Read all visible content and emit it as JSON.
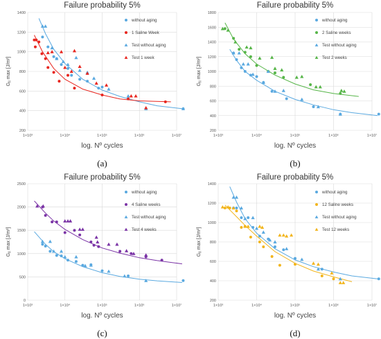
{
  "colors": {
    "blue": "#5aa9e0",
    "red": "#e8261f",
    "green": "#56b548",
    "purple": "#7b34a6",
    "yellow": "#f2b51c",
    "grid": "#d9d9d9"
  },
  "xlabel": "log. Nº cycles",
  "chart_data": [
    {
      "type": "scatter",
      "panel_label": "(a)",
      "title": "Failure probability 5%",
      "xlabel": "log. Nº cycles",
      "ylabel": "G_II max [J/m²]",
      "xscale": "log",
      "xlim": [
        1000,
        10000000
      ],
      "xticks": [
        "1×10³",
        "1×10⁴",
        "1×10⁵",
        "1×10⁶",
        "1×10⁷"
      ],
      "ylim": [
        200,
        1400
      ],
      "yticks": [
        200,
        400,
        600,
        800,
        1000,
        1200,
        1400
      ],
      "grid": true,
      "legend_position": "right",
      "series": [
        {
          "name": "without aging",
          "kind": "point",
          "marker": "circle",
          "color": "#5aa9e0",
          "x": [
            2500,
            3500,
            5000,
            6000,
            8000,
            12000,
            15000,
            25000,
            40000,
            80000,
            100000,
            500000,
            1500000,
            15000000
          ],
          "y": [
            1150,
            1050,
            950,
            930,
            870,
            830,
            760,
            720,
            700,
            630,
            640,
            520,
            420,
            420
          ]
        },
        {
          "name": "1 Saline Week",
          "kind": "point",
          "marker": "circle",
          "color": "#e8261f",
          "x": [
            1500,
            1700,
            2000,
            1600,
            2400,
            3000,
            3500,
            5000,
            7000,
            12000,
            18000,
            100000,
            500000,
            5000000
          ],
          "y": [
            1120,
            1120,
            1100,
            1050,
            980,
            930,
            840,
            790,
            700,
            760,
            630,
            560,
            520,
            490
          ]
        },
        {
          "name": "Test without aging",
          "kind": "point",
          "marker": "triangle",
          "color": "#5aa9e0",
          "x": [
            2500,
            3000,
            4500,
            6000,
            9000,
            12000,
            20000,
            25000,
            40000,
            60000,
            150000,
            500000,
            1500000,
            15000000
          ],
          "y": [
            1260,
            1260,
            1040,
            930,
            900,
            870,
            940,
            810,
            790,
            730,
            620,
            550,
            420,
            420
          ]
        },
        {
          "name": "Test 1 week",
          "kind": "point",
          "marker": "triangle",
          "color": "#e8261f",
          "x": [
            3500,
            4500,
            8000,
            10000,
            15000,
            18000,
            25000,
            40000,
            70000,
            130000,
            600000,
            800000,
            1500000
          ],
          "y": [
            990,
            1000,
            1000,
            840,
            800,
            1010,
            850,
            780,
            680,
            660,
            550,
            550,
            430
          ]
        },
        {
          "name": "",
          "kind": "fit",
          "color": "#5aa9e0",
          "x": [
            2000,
            3000,
            5000,
            10000,
            30000,
            100000,
            300000,
            1000000,
            3000000,
            14000000
          ],
          "y": [
            1340,
            1185,
            1025,
            880,
            720,
            610,
            545,
            490,
            450,
            420
          ]
        },
        {
          "name": "",
          "kind": "fit",
          "color": "#e8261f",
          "x": [
            1500,
            2500,
            5000,
            10000,
            30000,
            100000,
            300000,
            1000000,
            7000000
          ],
          "y": [
            1170,
            1000,
            830,
            720,
            620,
            560,
            520,
            500,
            490
          ]
        }
      ]
    },
    {
      "type": "scatter",
      "panel_label": "(b)",
      "title": "Failure probability 5%",
      "xlabel": "log. Nº cycles",
      "ylabel": "G_II max [J/m²]",
      "xscale": "log",
      "xlim": [
        1000,
        10000000
      ],
      "xticks": [
        "1×10³",
        "1×10⁴",
        "1×10⁵",
        "1×10⁶",
        "1×10⁷"
      ],
      "ylim": [
        200,
        1800
      ],
      "yticks": [
        200,
        400,
        600,
        800,
        1000,
        1200,
        1400,
        1600,
        1800
      ],
      "grid": true,
      "legend_position": "right",
      "series": [
        {
          "name": "without aging",
          "kind": "point",
          "marker": "circle",
          "color": "#5aa9e0",
          "x": [
            2500,
            3000,
            4000,
            5000,
            7000,
            10000,
            15000,
            25000,
            60000,
            300000,
            1500000,
            15000000
          ],
          "y": [
            1250,
            1160,
            1050,
            1000,
            950,
            930,
            850,
            730,
            630,
            520,
            420,
            420
          ]
        },
        {
          "name": "2 Saline weeks",
          "kind": "point",
          "marker": "circle",
          "color": "#56b548",
          "x": [
            1500,
            2500,
            3500,
            5000,
            7000,
            10000,
            20000,
            30000,
            50000,
            250000,
            1500000
          ],
          "y": [
            1580,
            1450,
            1300,
            1260,
            1200,
            1080,
            1000,
            980,
            920,
            820,
            700
          ]
        },
        {
          "name": "Test without aging",
          "kind": "point",
          "marker": "triangle",
          "color": "#5aa9e0",
          "x": [
            2500,
            3500,
            4500,
            6000,
            8000,
            15000,
            20000,
            30000,
            50000,
            150000,
            400000,
            1500000
          ],
          "y": [
            1250,
            1250,
            1100,
            1100,
            960,
            850,
            1000,
            730,
            740,
            620,
            520,
            420
          ]
        },
        {
          "name": "Test 2 weeks",
          "kind": "point",
          "marker": "triangle",
          "color": "#56b548",
          "x": [
            1300,
            1800,
            2800,
            5500,
            7000,
            12000,
            25000,
            30000,
            45000,
            110000,
            150000,
            350000,
            450000,
            1600000,
            1900000
          ],
          "y": [
            1580,
            1560,
            1400,
            1330,
            1320,
            1180,
            1190,
            1040,
            1020,
            920,
            930,
            790,
            790,
            740,
            730
          ]
        },
        {
          "name": "",
          "kind": "fit",
          "color": "#5aa9e0",
          "x": [
            2000,
            3000,
            5000,
            10000,
            30000,
            100000,
            300000,
            1000000,
            3000000,
            14000000
          ],
          "y": [
            1300,
            1150,
            1000,
            880,
            730,
            620,
            545,
            480,
            440,
            400
          ]
        },
        {
          "name": "",
          "kind": "fit",
          "color": "#56b548",
          "x": [
            1500,
            2500,
            5000,
            10000,
            30000,
            100000,
            300000,
            1000000,
            4500000
          ],
          "y": [
            1660,
            1440,
            1240,
            1100,
            950,
            830,
            750,
            700,
            660
          ]
        }
      ]
    },
    {
      "type": "scatter",
      "panel_label": "(c)",
      "title": "Failure probability 5%",
      "xlabel": "log. Nº cycles",
      "ylabel": "G_II max [J/m²]",
      "xscale": "log",
      "xlim": [
        1000,
        10000000
      ],
      "xticks": [
        "1×10³",
        "1×10⁴",
        "1×10⁵",
        "1×10⁶",
        "1×10⁷"
      ],
      "ylim": [
        0,
        2500
      ],
      "yticks": [
        0,
        500,
        1000,
        1500,
        2000,
        2500
      ],
      "grid": true,
      "legend_position": "right",
      "series": [
        {
          "name": "without aging",
          "kind": "point",
          "marker": "circle",
          "color": "#5aa9e0",
          "x": [
            2500,
            3000,
            4000,
            6000,
            8000,
            12000,
            20000,
            30000,
            50000,
            100000,
            500000,
            15000000
          ],
          "y": [
            1200,
            1160,
            1050,
            960,
            950,
            860,
            830,
            750,
            760,
            630,
            520,
            420
          ]
        },
        {
          "name": "4 Saline weeks",
          "kind": "point",
          "marker": "circle",
          "color": "#7b34a6",
          "x": [
            2500,
            3000,
            4500,
            6000,
            10000,
            18000,
            25000,
            50000,
            60000,
            80000,
            300000,
            600000,
            1500000,
            4000000
          ],
          "y": [
            2000,
            1820,
            1680,
            1680,
            1450,
            1500,
            1400,
            1250,
            1180,
            1150,
            1050,
            1000,
            930,
            860
          ]
        },
        {
          "name": "Test without aging",
          "kind": "point",
          "marker": "triangle",
          "color": "#5aa9e0",
          "x": [
            2500,
            4000,
            5000,
            8000,
            10000,
            20000,
            35000,
            50000,
            150000,
            400000,
            1500000
          ],
          "y": [
            1260,
            1260,
            1050,
            1050,
            930,
            930,
            740,
            750,
            620,
            520,
            420
          ]
        },
        {
          "name": "Test 4 weeks",
          "kind": "point",
          "marker": "triangle",
          "color": "#7b34a6",
          "x": [
            1800,
            2600,
            10000,
            12000,
            14000,
            25000,
            30000,
            70000,
            75000,
            150000,
            250000,
            450000,
            700000,
            1500000
          ],
          "y": [
            2020,
            2020,
            1700,
            1700,
            1700,
            1520,
            1520,
            1350,
            1250,
            1200,
            1200,
            1060,
            1000,
            970
          ]
        },
        {
          "name": "",
          "kind": "fit",
          "color": "#5aa9e0",
          "x": [
            1500,
            3000,
            5000,
            10000,
            30000,
            100000,
            300000,
            1000000,
            3000000,
            14000000
          ],
          "y": [
            1470,
            1200,
            1040,
            890,
            720,
            590,
            510,
            450,
            415,
            380
          ]
        },
        {
          "name": "",
          "kind": "fit",
          "color": "#7b34a6",
          "x": [
            1500,
            3000,
            5000,
            10000,
            30000,
            100000,
            300000,
            1000000,
            3000000,
            14000000
          ],
          "y": [
            2130,
            1870,
            1700,
            1520,
            1300,
            1120,
            1010,
            910,
            850,
            780
          ]
        }
      ]
    },
    {
      "type": "scatter",
      "panel_label": "(d)",
      "title": "Failure probability 5%",
      "xlabel": "log. Nº cycles",
      "ylabel": "G_II max [J/m²]",
      "xscale": "log",
      "xlim": [
        1000,
        10000000
      ],
      "xticks": [
        "1×10³",
        "1×10⁴",
        "1×10⁵",
        "1×10⁶",
        "1×10⁷"
      ],
      "ylim": [
        200,
        1400
      ],
      "yticks": [
        200,
        400,
        600,
        800,
        1000,
        1200,
        1400
      ],
      "grid": true,
      "legend_position": "right",
      "series": [
        {
          "name": "without aging",
          "kind": "point",
          "marker": "circle",
          "color": "#5aa9e0",
          "x": [
            2500,
            3000,
            4000,
            6000,
            8000,
            12000,
            20000,
            30000,
            50000,
            100000,
            500000,
            15000000
          ],
          "y": [
            1150,
            1150,
            1050,
            1050,
            950,
            860,
            830,
            750,
            720,
            630,
            520,
            420
          ]
        },
        {
          "name": "12 Saline weeks",
          "kind": "point",
          "marker": "circle",
          "color": "#f2b51c",
          "x": [
            1500,
            2000,
            3000,
            4000,
            5000,
            7000,
            12000,
            15000,
            25000,
            40000,
            100000,
            500000,
            1000000
          ],
          "y": [
            1150,
            1150,
            1120,
            950,
            960,
            850,
            800,
            750,
            650,
            560,
            570,
            450,
            420
          ]
        },
        {
          "name": "Test without aging",
          "kind": "point",
          "marker": "triangle",
          "color": "#5aa9e0",
          "x": [
            2500,
            3000,
            4000,
            5000,
            8000,
            10000,
            15000,
            22000,
            30000,
            60000,
            150000,
            400000,
            1500000
          ],
          "y": [
            1260,
            1260,
            1150,
            1040,
            1050,
            940,
            900,
            820,
            800,
            730,
            620,
            520,
            420
          ]
        },
        {
          "name": "Test 12 weeks",
          "kind": "point",
          "marker": "triangle",
          "color": "#f2b51c",
          "x": [
            1300,
            1800,
            2500,
            5000,
            6000,
            12000,
            14000,
            40000,
            50000,
            60000,
            80000,
            300000,
            400000,
            900000,
            1500000,
            1800000
          ],
          "y": [
            1160,
            1160,
            1150,
            960,
            960,
            960,
            950,
            870,
            870,
            860,
            870,
            580,
            570,
            480,
            380,
            380
          ]
        },
        {
          "name": "",
          "kind": "fit",
          "color": "#5aa9e0",
          "x": [
            2000,
            3000,
            5000,
            10000,
            30000,
            100000,
            300000,
            1000000,
            3000000,
            14000000
          ],
          "y": [
            1370,
            1210,
            1040,
            890,
            730,
            615,
            545,
            490,
            450,
            420
          ]
        },
        {
          "name": "",
          "kind": "fit",
          "color": "#f2b51c",
          "x": [
            1500,
            3000,
            5000,
            10000,
            30000,
            100000,
            300000,
            1000000,
            3000000
          ],
          "y": [
            1180,
            1060,
            970,
            860,
            700,
            580,
            500,
            440,
            390
          ]
        }
      ]
    }
  ]
}
